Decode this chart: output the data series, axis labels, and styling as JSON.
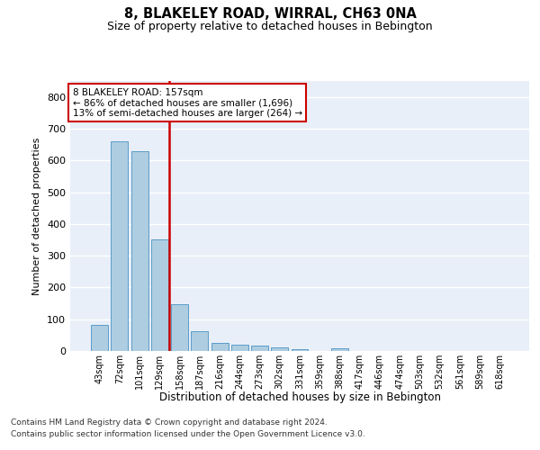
{
  "title": "8, BLAKELEY ROAD, WIRRAL, CH63 0NA",
  "subtitle": "Size of property relative to detached houses in Bebington",
  "xlabel": "Distribution of detached houses by size in Bebington",
  "ylabel": "Number of detached properties",
  "categories": [
    "43sqm",
    "72sqm",
    "101sqm",
    "129sqm",
    "158sqm",
    "187sqm",
    "216sqm",
    "244sqm",
    "273sqm",
    "302sqm",
    "331sqm",
    "359sqm",
    "388sqm",
    "417sqm",
    "446sqm",
    "474sqm",
    "503sqm",
    "532sqm",
    "561sqm",
    "589sqm",
    "618sqm"
  ],
  "values": [
    82,
    660,
    628,
    350,
    148,
    62,
    25,
    20,
    17,
    12,
    7,
    0,
    8,
    0,
    0,
    0,
    0,
    0,
    0,
    0,
    0
  ],
  "bar_color": "#aecde1",
  "bar_edge_color": "#5b9dc9",
  "highlight_line_color": "#cc0000",
  "highlight_bin_index": 4,
  "annotation_text": "8 BLAKELEY ROAD: 157sqm\n← 86% of detached houses are smaller (1,696)\n13% of semi-detached houses are larger (264) →",
  "annotation_box_color": "#cc0000",
  "ylim": [
    0,
    850
  ],
  "yticks": [
    0,
    100,
    200,
    300,
    400,
    500,
    600,
    700,
    800
  ],
  "background_color": "#e8eff8",
  "footer_line1": "Contains HM Land Registry data © Crown copyright and database right 2024.",
  "footer_line2": "Contains public sector information licensed under the Open Government Licence v3.0."
}
